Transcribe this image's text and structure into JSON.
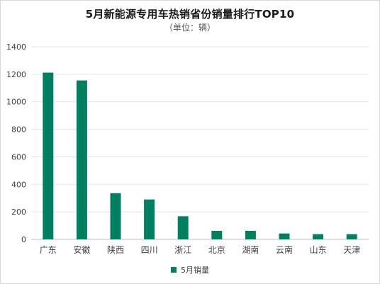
{
  "chart_data": {
    "type": "bar",
    "title": "5月新能源专用车热销省份销量排行TOP10",
    "subtitle": "（单位：辆）",
    "categories": [
      "广东",
      "安徽",
      "陕西",
      "四川",
      "浙江",
      "北京",
      "湖南",
      "云南",
      "山东",
      "天津"
    ],
    "series": [
      {
        "name": "5月销量",
        "values": [
          1212,
          1155,
          336,
          290,
          168,
          62,
          62,
          43,
          38,
          38
        ]
      }
    ],
    "ylim": [
      0,
      1400
    ],
    "yticks": [
      0,
      200,
      400,
      600,
      800,
      1000,
      1200,
      1400
    ],
    "grid": true,
    "legend_position": "bottom",
    "bar_color": "#008060"
  }
}
